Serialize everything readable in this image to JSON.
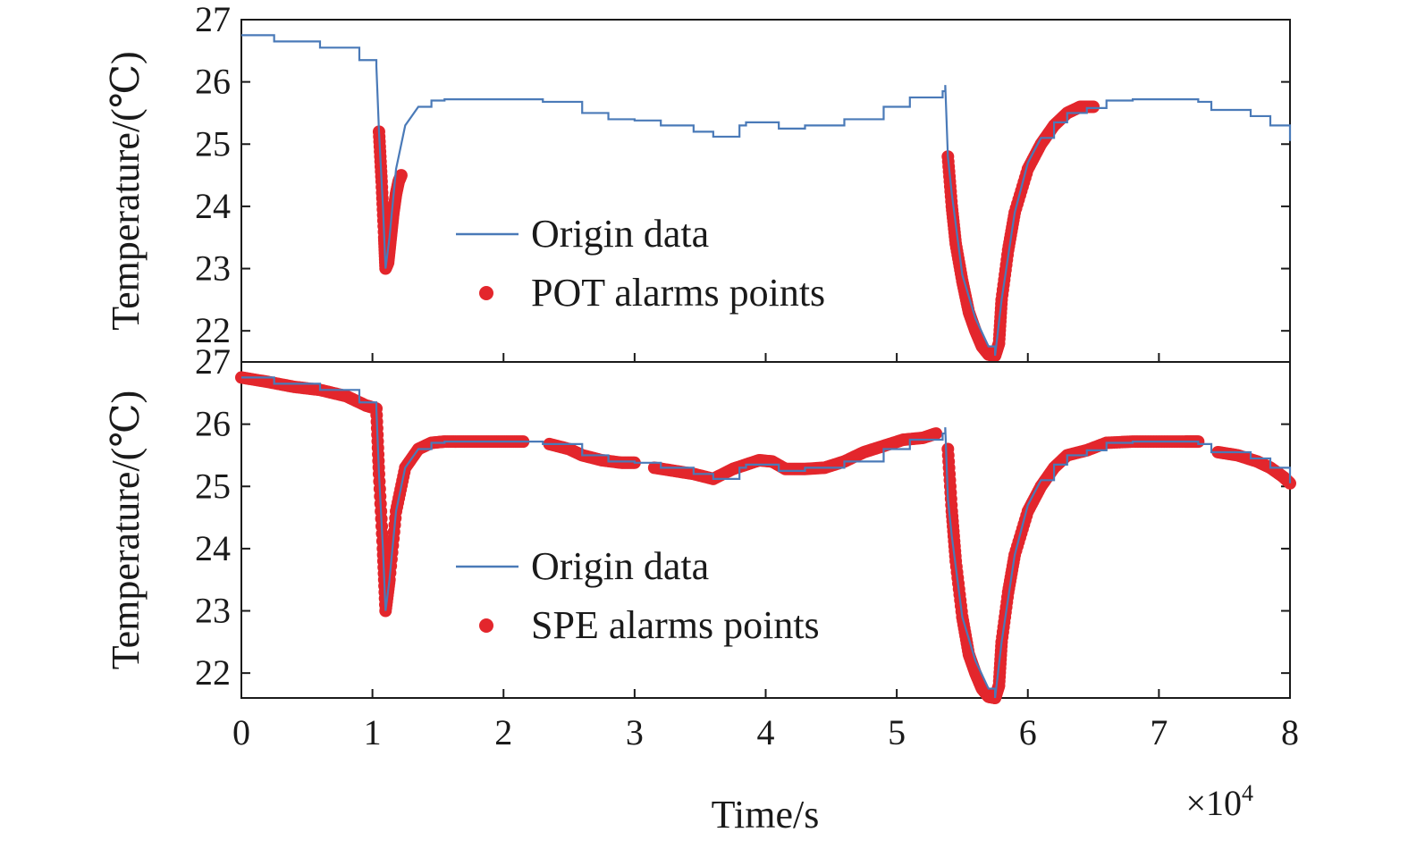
{
  "colors": {
    "origin_line": "#4a7ab8",
    "alarm_points": "#e3262c",
    "axes": "#1a1a1a",
    "background": "#ffffff"
  },
  "chart_data": [
    {
      "type": "line",
      "panel": "top",
      "ylabel": "Temperature/(℃)",
      "ylim": [
        21.5,
        27
      ],
      "yticks": [
        22,
        23,
        24,
        25,
        26,
        27
      ],
      "xlim": [
        0,
        8
      ],
      "xticks": [
        0,
        1,
        2,
        3,
        4,
        5,
        6,
        7,
        8
      ],
      "legend_position": "center",
      "series": [
        {
          "name": "Origin data",
          "kind": "line",
          "x": [
            0,
            0.25,
            0.6,
            0.9,
            1.03,
            1.05,
            1.08,
            1.1,
            1.13,
            1.18,
            1.25,
            1.35,
            1.45,
            1.55,
            2.0,
            2.3,
            2.6,
            2.8,
            3.0,
            3.2,
            3.45,
            3.6,
            3.8,
            3.85,
            4.1,
            4.15,
            4.3,
            4.6,
            4.9,
            5.1,
            5.35,
            5.37,
            5.39,
            5.42,
            5.5,
            5.6,
            5.7,
            5.75,
            5.8,
            5.9,
            6.0,
            6.1,
            6.2,
            6.3,
            6.45,
            6.6,
            6.8,
            7.0,
            7.2,
            7.3,
            7.4,
            7.7,
            7.85,
            8.0
          ],
          "y": [
            26.75,
            26.65,
            26.55,
            26.35,
            26.25,
            25.2,
            24.0,
            23.0,
            23.5,
            24.6,
            25.3,
            25.6,
            25.7,
            25.72,
            25.72,
            25.68,
            25.5,
            25.4,
            25.38,
            25.3,
            25.2,
            25.12,
            25.3,
            25.35,
            25.25,
            25.25,
            25.3,
            25.4,
            25.6,
            25.75,
            25.85,
            25.95,
            24.8,
            24.2,
            22.9,
            22.2,
            21.75,
            21.6,
            22.5,
            23.9,
            24.7,
            25.1,
            25.35,
            25.5,
            25.58,
            25.7,
            25.72,
            25.72,
            25.72,
            25.68,
            25.55,
            25.45,
            25.3,
            25.05
          ]
        },
        {
          "name": "POT alarms points",
          "kind": "scatter",
          "segments": [
            {
              "x": [
                1.05,
                1.07,
                1.09,
                1.1,
                1.12,
                1.14,
                1.16,
                1.18,
                1.2,
                1.22
              ],
              "y": [
                25.2,
                24.4,
                23.5,
                23.0,
                23.1,
                23.5,
                23.9,
                24.2,
                24.4,
                24.5
              ]
            },
            {
              "x": [
                5.39,
                5.42,
                5.45,
                5.5,
                5.55,
                5.6,
                5.65,
                5.7,
                5.75,
                5.78,
                5.8,
                5.85,
                5.9,
                6.0,
                6.1,
                6.2,
                6.3,
                6.4,
                6.5
              ],
              "y": [
                24.8,
                24.0,
                23.4,
                22.8,
                22.3,
                22.0,
                21.75,
                21.62,
                21.6,
                21.8,
                22.5,
                23.3,
                23.9,
                24.6,
                25.0,
                25.3,
                25.5,
                25.6,
                25.6
              ]
            }
          ]
        }
      ]
    },
    {
      "type": "line",
      "panel": "bottom",
      "ylabel": "Temperature/(℃)",
      "xlabel": "Time/s",
      "x_multiplier": "×10",
      "x_multiplier_exponent": "4",
      "ylim": [
        21.6,
        27
      ],
      "yticks": [
        22,
        23,
        24,
        25,
        26,
        27
      ],
      "xlim": [
        0,
        8
      ],
      "xticks": [
        0,
        1,
        2,
        3,
        4,
        5,
        6,
        7,
        8
      ],
      "x_tick_labels": [
        "0",
        "1",
        "2",
        "3",
        "4",
        "5",
        "6",
        "7",
        "8"
      ],
      "legend_position": "lower-center",
      "series": [
        {
          "name": "Origin data",
          "kind": "line",
          "x": [
            0,
            0.25,
            0.6,
            0.9,
            1.03,
            1.05,
            1.08,
            1.1,
            1.13,
            1.18,
            1.25,
            1.35,
            1.45,
            1.55,
            2.0,
            2.3,
            2.6,
            2.8,
            3.0,
            3.2,
            3.45,
            3.6,
            3.8,
            3.85,
            4.1,
            4.15,
            4.3,
            4.6,
            4.9,
            5.1,
            5.35,
            5.37,
            5.39,
            5.42,
            5.5,
            5.6,
            5.7,
            5.75,
            5.8,
            5.9,
            6.0,
            6.1,
            6.2,
            6.3,
            6.45,
            6.6,
            6.8,
            7.0,
            7.2,
            7.3,
            7.4,
            7.7,
            7.85,
            8.0
          ],
          "y": [
            26.75,
            26.65,
            26.55,
            26.35,
            26.25,
            25.2,
            24.0,
            23.0,
            23.5,
            24.6,
            25.3,
            25.6,
            25.7,
            25.72,
            25.72,
            25.68,
            25.5,
            25.4,
            25.38,
            25.3,
            25.2,
            25.12,
            25.3,
            25.35,
            25.25,
            25.25,
            25.3,
            25.4,
            25.6,
            25.75,
            25.85,
            25.95,
            24.8,
            24.2,
            22.9,
            22.2,
            21.75,
            21.6,
            22.5,
            23.9,
            24.7,
            25.1,
            25.35,
            25.5,
            25.58,
            25.7,
            25.72,
            25.72,
            25.72,
            25.68,
            25.55,
            25.45,
            25.3,
            25.05
          ]
        },
        {
          "name": "SPE alarms points",
          "kind": "scatter",
          "segments": [
            {
              "x": [
                0,
                0.2,
                0.4,
                0.6,
                0.8,
                0.95,
                1.03,
                1.05,
                1.08,
                1.1,
                1.13,
                1.18,
                1.25,
                1.35,
                1.45,
                1.55,
                1.7,
                1.85,
                2.0,
                2.15
              ],
              "y": [
                26.75,
                26.68,
                26.6,
                26.55,
                26.45,
                26.3,
                26.25,
                25.2,
                24.0,
                23.0,
                23.5,
                24.6,
                25.3,
                25.6,
                25.7,
                25.72,
                25.72,
                25.72,
                25.72,
                25.72
              ]
            },
            {
              "x": [
                2.35,
                2.5,
                2.6,
                2.75,
                2.9,
                3.0
              ],
              "y": [
                25.68,
                25.6,
                25.5,
                25.42,
                25.38,
                25.38
              ]
            },
            {
              "x": [
                3.15,
                3.3,
                3.45,
                3.6,
                3.75,
                3.85,
                3.95,
                4.05,
                4.15,
                4.3,
                4.45,
                4.6,
                4.75,
                4.9,
                5.05,
                5.2,
                5.3
              ],
              "y": [
                25.3,
                25.25,
                25.2,
                25.12,
                25.28,
                25.35,
                25.42,
                25.4,
                25.28,
                25.28,
                25.3,
                25.4,
                25.55,
                25.65,
                25.75,
                25.78,
                25.85
              ]
            },
            {
              "x": [
                5.39,
                5.42,
                5.45,
                5.5,
                5.55,
                5.6,
                5.65,
                5.7,
                5.75,
                5.78,
                5.8,
                5.85,
                5.9,
                6.0,
                6.1,
                6.2,
                6.3,
                6.45,
                6.6,
                6.8,
                7.0,
                7.2,
                7.3
              ],
              "y": [
                25.6,
                24.6,
                23.8,
                22.9,
                22.3,
                22.0,
                21.75,
                21.62,
                21.6,
                21.8,
                22.5,
                23.3,
                23.9,
                24.6,
                25.0,
                25.3,
                25.5,
                25.58,
                25.7,
                25.72,
                25.72,
                25.72,
                25.72
              ]
            },
            {
              "x": [
                7.45,
                7.6,
                7.75,
                7.85,
                7.95,
                8.0
              ],
              "y": [
                25.55,
                25.5,
                25.4,
                25.3,
                25.15,
                25.05
              ]
            }
          ]
        }
      ]
    }
  ]
}
